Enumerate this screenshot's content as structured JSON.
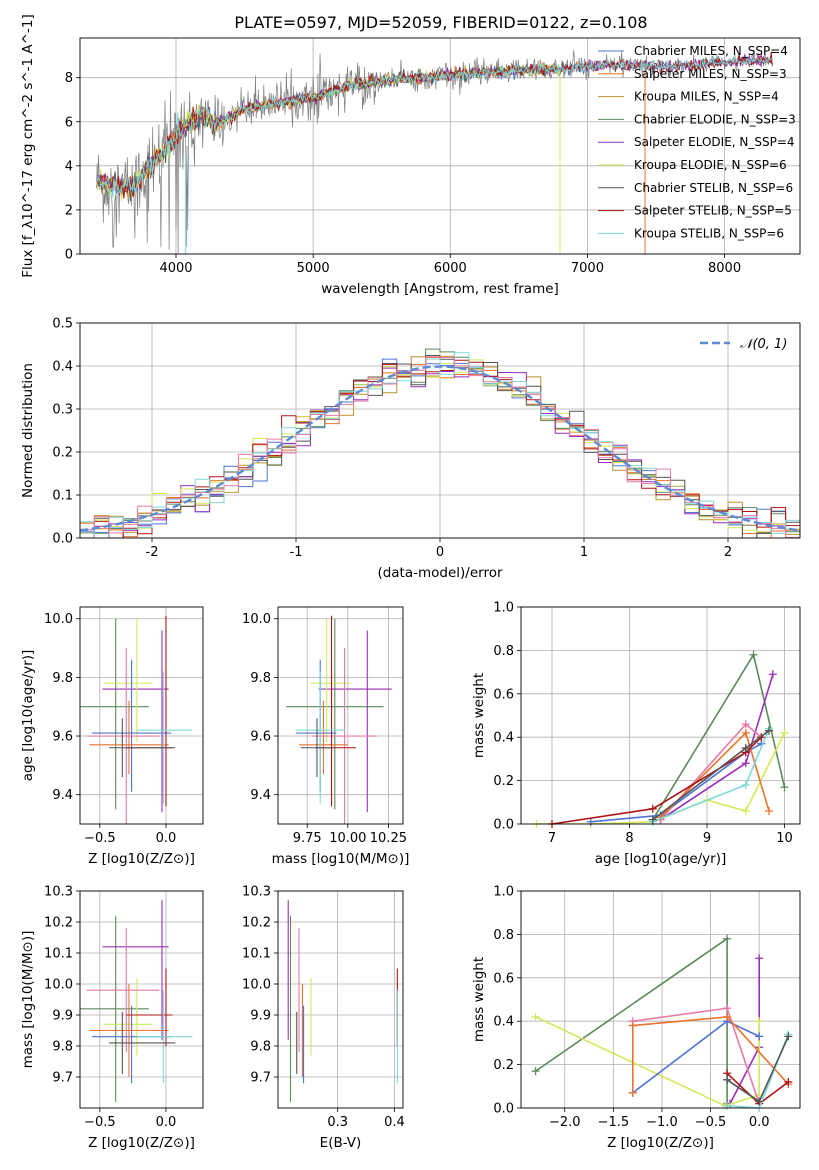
{
  "colors": {
    "chabrier_miles": "#4f74d6",
    "salpeter_miles": "#e8742e",
    "kroupa_miles": "#b9922f",
    "chabrier_elodie": "#5a8b5a",
    "salpeter_elodie": "#9b2fbd",
    "kroupa_elodie": "#d4e85a",
    "chabrier_stelib": "#555555",
    "salpeter_stelib": "#b01414",
    "kroupa_stelib": "#7fd8d8",
    "pink": "#e87aa8",
    "gaussian": "#5b8ad6",
    "data": "#7f7f7f"
  },
  "chart_data": [
    {
      "id": "spectrum",
      "type": "line",
      "title": "PLATE=0597, MJD=52059, FIBERID=0122, z=0.108",
      "xlabel": "wavelength [Angstrom, rest frame]",
      "ylabel": "Flux [f_λ10^-17 erg cm^-2 s^-1 A^-1]",
      "xlim": [
        3300,
        8550
      ],
      "ylim": [
        0,
        9.8
      ],
      "xticks": [
        4000,
        5000,
        6000,
        7000,
        8000
      ],
      "yticks": [
        0,
        2,
        4,
        6,
        8
      ],
      "legend_position": "top-right",
      "legend": [
        "Chabrier MILES, N_SSP=4",
        "Salpeter MILES, N_SSP=3",
        "Kroupa MILES, N_SSP=4",
        "Chabrier ELODIE, N_SSP=3",
        "Salpeter ELODIE, N_SSP=4",
        "Kroupa ELODIE, N_SSP=6",
        "Chabrier STELIB, N_SSP=6",
        "Salpeter STELIB, N_SSP=5",
        "Kroupa STELIB, N_SSP=6"
      ],
      "continuum": {
        "x": [
          3400,
          3500,
          3600,
          3700,
          3800,
          3900,
          4000,
          4100,
          4200,
          4300,
          4500,
          4700,
          5000,
          5300,
          5600,
          6000,
          6400,
          6800,
          7200,
          7600,
          8000,
          8350
        ],
        "y": [
          3.3,
          3.2,
          3.0,
          3.1,
          3.9,
          4.6,
          5.4,
          6.0,
          6.3,
          5.9,
          6.6,
          6.8,
          7.1,
          7.7,
          7.9,
          8.1,
          8.3,
          8.4,
          8.6,
          8.5,
          8.7,
          8.8
        ]
      }
    },
    {
      "id": "residuals",
      "type": "histogram",
      "xlabel": "(data-model)/error",
      "ylabel": "Normed distribution",
      "xlim": [
        -2.5,
        2.5
      ],
      "ylim": [
        0,
        0.5
      ],
      "xticks": [
        -2,
        -1,
        0,
        1,
        2
      ],
      "yticks": [
        0.0,
        0.1,
        0.2,
        0.3,
        0.4,
        0.5
      ],
      "legend": "𝒩(0, 1)",
      "legend_position": "top-right",
      "bin_width": 0.1,
      "bins_start": -2.5
    },
    {
      "id": "age_vs_Z",
      "type": "scatter",
      "xlabel": "Z [log10(Z/Z⊙)]",
      "ylabel": "age  [log10(age/yr)]",
      "xlim": [
        -0.65,
        0.28
      ],
      "ylim": [
        9.3,
        10.04
      ],
      "xticks": [
        -0.5,
        0.0
      ],
      "xticklabels": [
        "−0.5",
        "0.0"
      ],
      "yticks": [
        9.4,
        9.6,
        9.8,
        10.0
      ]
    },
    {
      "id": "age_vs_mass",
      "type": "scatter",
      "xlabel": "mass [log10(M/M⊙)]",
      "ylabel": "",
      "xlim": [
        9.57,
        10.34
      ],
      "ylim": [
        9.3,
        10.04
      ],
      "xticks": [
        9.75,
        10.0,
        10.25
      ],
      "xticklabels": [
        "9.75",
        "10.00",
        "10.25"
      ],
      "yticks": [
        9.4,
        9.6,
        9.8,
        10.0
      ]
    },
    {
      "id": "weight_vs_age",
      "type": "line",
      "xlabel": "age  [log10(age/yr)]",
      "ylabel": "mass weight",
      "xlim": [
        6.6,
        10.2
      ],
      "ylim": [
        0,
        1.0
      ],
      "xticks": [
        7,
        8,
        9,
        10
      ],
      "yticks": [
        0.0,
        0.2,
        0.4,
        0.6,
        0.8,
        1.0
      ]
    },
    {
      "id": "mass_vs_Z",
      "type": "scatter",
      "xlabel": "Z [log10(Z/Z⊙)]",
      "ylabel": "mass [log10(M/M⊙)]",
      "xlim": [
        -0.65,
        0.28
      ],
      "ylim": [
        9.6,
        10.3
      ],
      "xticks": [
        -0.5,
        0.0
      ],
      "xticklabels": [
        "−0.5",
        "0.0"
      ],
      "yticks": [
        9.7,
        9.8,
        9.9,
        10.0,
        10.1,
        10.2,
        10.3
      ]
    },
    {
      "id": "mass_vs_ebv",
      "type": "scatter",
      "xlabel": "E(B-V)",
      "ylabel": "",
      "xlim": [
        0.195,
        0.415
      ],
      "ylim": [
        9.6,
        10.3
      ],
      "xticks": [
        0.3,
        0.4
      ],
      "xticklabels": [
        "0.3",
        "0.4"
      ],
      "yticks": [
        9.7,
        9.8,
        9.9,
        10.0,
        10.1,
        10.2,
        10.3
      ]
    },
    {
      "id": "weight_vs_Z",
      "type": "line",
      "xlabel": "Z [log10(Z/Z⊙)]",
      "ylabel": "mass weight",
      "xlim": [
        -2.45,
        0.42
      ],
      "ylim": [
        0,
        1.0
      ],
      "xticks": [
        -2.0,
        -1.5,
        -1.0,
        -0.5,
        0.0
      ],
      "xticklabels": [
        "−2.0",
        "−1.5",
        "−1.0",
        "−0.5",
        "0.0"
      ],
      "yticks": [
        0.0,
        0.2,
        0.4,
        0.6,
        0.8,
        1.0
      ]
    }
  ],
  "fits": [
    {
      "color": "#5a8b5a",
      "Z": -0.38,
      "Zerr": [
        0.55,
        0.25
      ],
      "age": 9.7,
      "ageErr": [
        0.35,
        0.3
      ],
      "mass": 9.92,
      "massErr": [
        0.3,
        0.3
      ],
      "ebv": 0.217
    },
    {
      "color": "#9b2fbd",
      "Z": -0.03,
      "Zerr": [
        0.45,
        0.05
      ],
      "age": 9.76,
      "ageErr": [
        0.42,
        0.2
      ],
      "mass": 10.12,
      "massErr": [
        0.3,
        0.15
      ],
      "ebv": 0.213
    },
    {
      "color": "#d4e85a",
      "Z": -0.22,
      "Zerr": [
        0.25,
        0.12
      ],
      "age": 9.78,
      "ageErr": [
        0.2,
        0.22
      ],
      "mass": 9.87,
      "massErr": [
        0.1,
        0.15
      ],
      "ebv": 0.253
    },
    {
      "color": "#e87aa8",
      "Z": -0.3,
      "Zerr": [
        0.3,
        0.25
      ],
      "age": 9.6,
      "ageErr": [
        0.3,
        0.3
      ],
      "mass": 9.98,
      "massErr": [
        0.2,
        0.2
      ],
      "ebv": 0.232
    },
    {
      "color": "#4f74d6",
      "Z": -0.26,
      "Zerr": [
        0.3,
        0.3
      ],
      "age": 9.61,
      "ageErr": [
        0.2,
        0.25
      ],
      "mass": 9.83,
      "massErr": [
        0.15,
        0.1
      ],
      "ebv": 0.24
    },
    {
      "color": "#e8742e",
      "Z": -0.28,
      "Zerr": [
        0.3,
        0.3
      ],
      "age": 9.57,
      "ageErr": [
        0.1,
        0.15
      ],
      "mass": 9.85,
      "massErr": [
        0.15,
        0.15
      ],
      "ebv": 0.238
    },
    {
      "color": "#b01414",
      "Z": 0.0,
      "Zerr": [
        0.3,
        0.05
      ],
      "age": 9.56,
      "ageErr": [
        0.2,
        0.45
      ],
      "mass": 9.9,
      "massErr": [
        0.1,
        0.15
      ],
      "ebv": 0.405
    },
    {
      "color": "#7fd8d8",
      "Z": -0.02,
      "Zerr": [
        0.2,
        0.22
      ],
      "age": 9.62,
      "ageErr": [
        0.25,
        0.2
      ],
      "mass": 9.83,
      "massErr": [
        0.15,
        0.15
      ],
      "ebv": 0.405
    },
    {
      "color": "#555555",
      "Z": -0.33,
      "Zerr": [
        0.1,
        0.4
      ],
      "age": 9.56,
      "ageErr": [
        0.1,
        0.1
      ],
      "mass": 9.81,
      "massErr": [
        0.1,
        0.1
      ],
      "ebv": 0.228
    }
  ],
  "weights_age": [
    {
      "color": "#5a8b5a",
      "age": [
        8.3,
        9.6,
        10.0
      ],
      "w": [
        0.02,
        0.78,
        0.17
      ]
    },
    {
      "color": "#9b2fbd",
      "age": [
        8.4,
        9.5,
        9.85
      ],
      "w": [
        0.02,
        0.28,
        0.69
      ]
    },
    {
      "color": "#d4e85a",
      "age": [
        6.8,
        7.5,
        8.3,
        9.0,
        9.5,
        10.0
      ],
      "w": [
        0.0,
        0.0,
        0.01,
        0.11,
        0.06,
        0.42
      ]
    },
    {
      "color": "#e87aa8",
      "age": [
        8.4,
        9.5,
        9.7
      ],
      "w": [
        0.02,
        0.46,
        0.4
      ]
    },
    {
      "color": "#4f74d6",
      "age": [
        7.5,
        8.4,
        9.5,
        9.7
      ],
      "w": [
        0.01,
        0.04,
        0.33,
        0.37
      ]
    },
    {
      "color": "#e8742e",
      "age": [
        8.4,
        9.5,
        9.8
      ],
      "w": [
        0.03,
        0.42,
        0.06
      ]
    },
    {
      "color": "#b01414",
      "age": [
        7.0,
        8.3,
        9.5,
        9.7
      ],
      "w": [
        0.0,
        0.07,
        0.33,
        0.4
      ]
    },
    {
      "color": "#7fd8d8",
      "age": [
        8.3,
        9.5,
        9.8
      ],
      "w": [
        0.01,
        0.18,
        0.44
      ]
    },
    {
      "color": "#555555",
      "age": [
        8.3,
        9.5,
        9.8
      ],
      "w": [
        0.02,
        0.35,
        0.43
      ]
    }
  ],
  "weights_Z": [
    {
      "color": "#5a8b5a",
      "Z": [
        -2.3,
        -0.33,
        -0.33
      ],
      "w": [
        0.17,
        0.78,
        0.02
      ]
    },
    {
      "color": "#9b2fbd",
      "Z": [
        -0.3,
        0.0,
        0.0
      ],
      "w": [
        0.02,
        0.28,
        0.69
      ]
    },
    {
      "color": "#d4e85a",
      "Z": [
        -2.3,
        -0.35,
        0.0,
        0.0
      ],
      "w": [
        0.42,
        0.01,
        0.06,
        0.4
      ]
    },
    {
      "color": "#e87aa8",
      "Z": [
        -1.3,
        -0.33,
        0.0
      ],
      "w": [
        0.4,
        0.46,
        0.02
      ]
    },
    {
      "color": "#4f74d6",
      "Z": [
        -1.3,
        -0.33,
        0.0
      ],
      "w": [
        0.07,
        0.4,
        0.33
      ]
    },
    {
      "color": "#e8742e",
      "Z": [
        -1.3,
        -1.3,
        -0.33,
        0.3
      ],
      "w": [
        0.07,
        0.38,
        0.42,
        0.11
      ]
    },
    {
      "color": "#b01414",
      "Z": [
        -0.33,
        0.0,
        0.3
      ],
      "w": [
        0.16,
        0.02,
        0.12
      ]
    },
    {
      "color": "#7fd8d8",
      "Z": [
        -0.33,
        0.0,
        0.3
      ],
      "w": [
        0.01,
        0.0,
        0.34
      ]
    },
    {
      "color": "#555555",
      "Z": [
        -0.33,
        0.0,
        0.3
      ],
      "w": [
        0.13,
        0.03,
        0.33
      ]
    }
  ]
}
